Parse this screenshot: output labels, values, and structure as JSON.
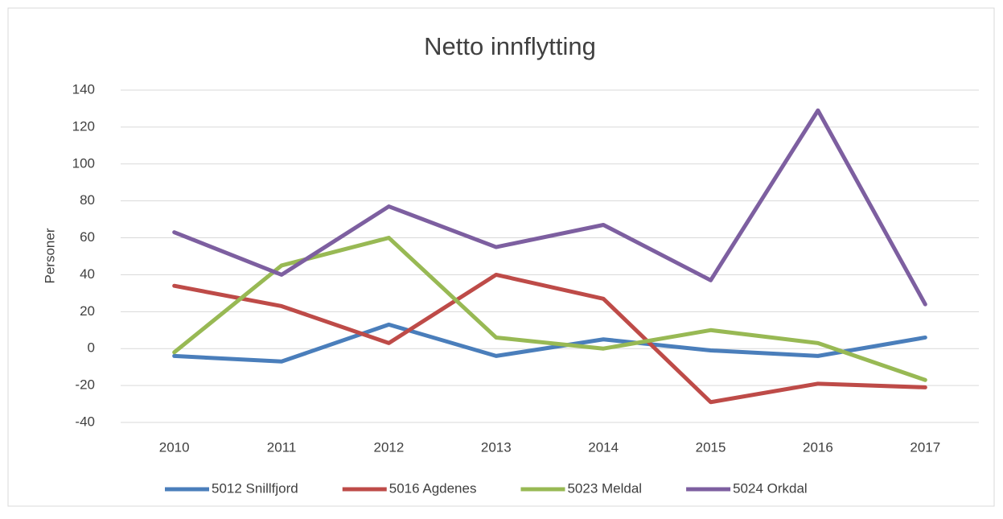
{
  "chart_data": {
    "type": "line",
    "title": "Netto innflytting",
    "y_label": "Personer",
    "categories": [
      "2010",
      "2011",
      "2012",
      "2013",
      "2014",
      "2015",
      "2016",
      "2017"
    ],
    "series": [
      {
        "name": "5012 Snillfjord",
        "color": "#4a7ebb",
        "values": [
          -4,
          -7,
          13,
          -4,
          5,
          -1,
          -4,
          6
        ]
      },
      {
        "name": "5016 Agdenes",
        "color": "#be4b48",
        "values": [
          34,
          23,
          3,
          40,
          27,
          -29,
          -19,
          -21
        ]
      },
      {
        "name": "5023 Meldal",
        "color": "#98b954",
        "values": [
          -2,
          45,
          60,
          6,
          0,
          10,
          3,
          -17
        ]
      },
      {
        "name": "5024 Orkdal",
        "color": "#7d5fa0",
        "values": [
          63,
          40,
          77,
          55,
          67,
          37,
          129,
          24
        ]
      }
    ],
    "ylim": [
      -40,
      140
    ],
    "yticks": [
      -40,
      -20,
      0,
      20,
      40,
      60,
      80,
      100,
      120,
      140
    ],
    "grid": true,
    "legend": "bottom"
  }
}
